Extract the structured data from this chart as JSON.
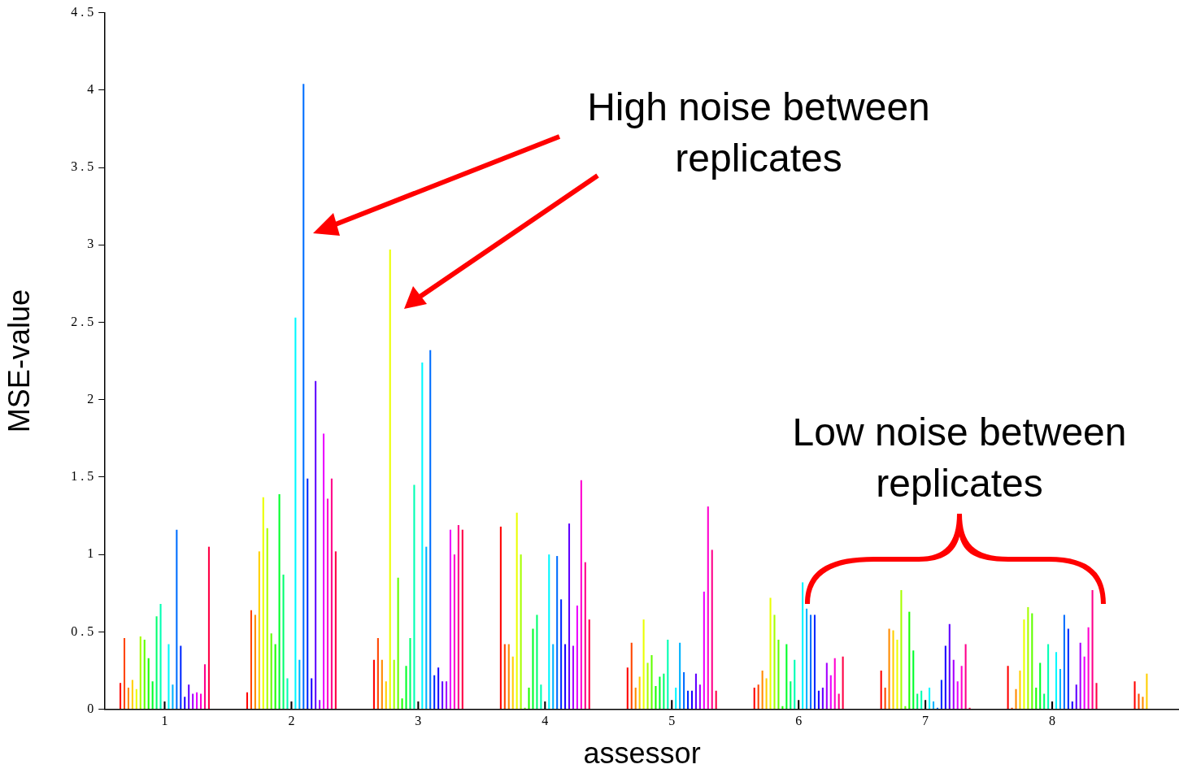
{
  "chart_data": {
    "type": "bar",
    "xlabel": "assessor",
    "ylabel": "MSE-value",
    "annotations": [
      "High noise between replicates",
      "Low noise between replicates"
    ],
    "x": [
      1,
      2,
      3,
      4,
      5,
      6,
      7,
      8,
      9
    ],
    "xlim": [
      0.53,
      9
    ],
    "xticks": [
      1,
      2,
      3,
      4,
      5,
      6,
      7,
      8
    ],
    "ylim": [
      0,
      4.5
    ],
    "yticks": [
      0,
      {
        "value": 0.5,
        "label": "0 . 5"
      },
      1,
      {
        "value": 1.5,
        "label": "1 . 5"
      },
      2,
      {
        "value": 2.5,
        "label": "2 . 5"
      },
      3,
      {
        "value": 3.5,
        "label": "3 . 5"
      },
      4,
      {
        "value": 4.5,
        "label": "4 . 5"
      }
    ],
    "series": [
      {
        "color": "#ff0000",
        "values": [
          0.17,
          0.11,
          0.32,
          1.18,
          0.27,
          0.14,
          0.25,
          0.28,
          0.18
        ]
      },
      {
        "color": "#ff4500",
        "values": [
          0.46,
          0.64,
          0.46,
          0.42,
          0.43,
          0.16,
          0.14,
          0.01,
          0.1
        ]
      },
      {
        "color": "#ff8a00",
        "values": [
          0.14,
          0.61,
          0.32,
          0.42,
          0.14,
          0.25,
          0.52,
          0.13,
          0.08
        ]
      },
      {
        "color": "#ffcf00",
        "values": [
          0.19,
          1.02,
          0.18,
          0.34,
          0.21,
          0.2,
          0.51,
          0.25,
          0.23
        ]
      },
      {
        "color": "#ebff00",
        "values": [
          0.13,
          1.37,
          2.97,
          1.27,
          0.58,
          0.72,
          0.45,
          0.58,
          null
        ]
      },
      {
        "color": "#a6ff00",
        "values": [
          0.47,
          1.17,
          0.32,
          1.0,
          0.3,
          0.61,
          0.77,
          0.66,
          null
        ]
      },
      {
        "color": "#61ff00",
        "values": [
          0.45,
          0.49,
          0.85,
          0.01,
          0.35,
          0.45,
          0.02,
          0.62,
          null
        ]
      },
      {
        "color": "#1cff00",
        "values": [
          0.33,
          0.42,
          0.07,
          0.14,
          0.15,
          0.02,
          0.63,
          0.14,
          null
        ]
      },
      {
        "color": "#00ff29",
        "values": [
          0.18,
          1.39,
          0.28,
          0.52,
          0.21,
          0.42,
          0.38,
          0.3,
          null
        ]
      },
      {
        "color": "#00ff6e",
        "values": [
          0.6,
          0.87,
          0.46,
          0.61,
          0.23,
          0.18,
          0.1,
          0.1,
          null
        ]
      },
      {
        "color": "#00ffb3",
        "values": [
          0.68,
          0.2,
          1.45,
          0.16,
          0.45,
          0.32,
          0.12,
          0.42,
          null
        ]
      },
      {
        "color": "#000000",
        "values": [
          0.05,
          0.05,
          0.05,
          0.05,
          0.06,
          0.06,
          0.06,
          0.05,
          null
        ]
      },
      {
        "color": "#00f8ff",
        "values": [
          0.42,
          2.53,
          2.24,
          1.0,
          0.14,
          0.82,
          0.14,
          0.37,
          null
        ]
      },
      {
        "color": "#00b3ff",
        "values": [
          0.16,
          0.32,
          1.05,
          0.42,
          0.43,
          0.65,
          0.05,
          0.26,
          null
        ]
      },
      {
        "color": "#006eff",
        "values": [
          1.16,
          4.04,
          2.32,
          0.99,
          0.24,
          0.61,
          0.01,
          0.61,
          null
        ]
      },
      {
        "color": "#0029ff",
        "values": [
          0.41,
          1.49,
          0.22,
          0.71,
          0.12,
          0.61,
          0.19,
          0.52,
          null
        ]
      },
      {
        "color": "#1c00ff",
        "values": [
          0.08,
          0.2,
          0.27,
          0.42,
          0.12,
          0.12,
          0.41,
          0.05,
          null
        ]
      },
      {
        "color": "#6100ff",
        "values": [
          0.16,
          2.12,
          0.18,
          1.2,
          0.23,
          0.14,
          0.55,
          0.16,
          null
        ]
      },
      {
        "color": "#a600ff",
        "values": [
          0.1,
          0.06,
          0.18,
          0.41,
          0.16,
          0.3,
          0.32,
          0.43,
          null
        ]
      },
      {
        "color": "#eb00ff",
        "values": [
          0.11,
          1.78,
          1.16,
          0.67,
          0.76,
          0.22,
          0.18,
          0.34,
          null
        ]
      },
      {
        "color": "#ff00cf",
        "values": [
          0.1,
          1.36,
          1.0,
          1.48,
          1.31,
          0.33,
          0.28,
          0.53,
          null
        ]
      },
      {
        "color": "#ff008a",
        "values": [
          0.29,
          1.49,
          1.19,
          0.95,
          1.03,
          0.1,
          0.42,
          0.77,
          null
        ]
      },
      {
        "color": "#ff0045",
        "values": [
          1.05,
          1.02,
          1.16,
          0.58,
          0.12,
          0.34,
          0.01,
          0.17,
          null
        ]
      }
    ]
  }
}
